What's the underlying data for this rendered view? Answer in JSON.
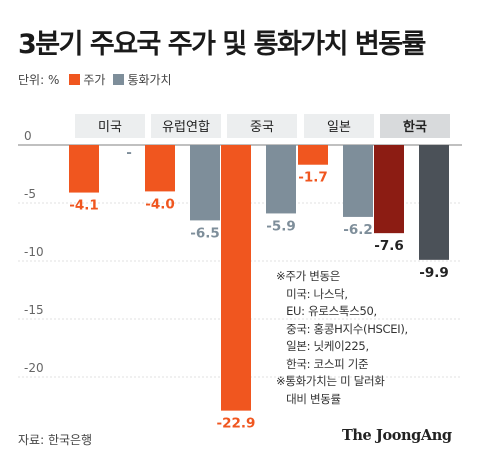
{
  "title": "3분기 주요국 주가 및 통화가치 변동률",
  "legend": {
    "unit": "단위: %",
    "items": [
      {
        "label": "주가",
        "color": "#f0561f"
      },
      {
        "label": "통화가치",
        "color": "#7e8e9a"
      }
    ]
  },
  "chart_data": {
    "type": "bar",
    "categories": [
      "미국",
      "유럽연합",
      "중국",
      "일본",
      "한국"
    ],
    "series": [
      {
        "name": "주가",
        "values": [
          -4.1,
          -4.0,
          -22.9,
          -1.7,
          -7.6
        ],
        "labels": [
          "-4.1",
          "-4.0",
          "-22.9",
          "-1.7",
          "-7.6"
        ]
      },
      {
        "name": "통화가치",
        "values": [
          0,
          -6.5,
          -5.9,
          -6.2,
          -9.9
        ],
        "labels": [
          "-",
          "-6.5",
          "-5.9",
          "-6.2",
          "-9.9"
        ]
      }
    ],
    "yticks": [
      0,
      -5,
      -10,
      -15,
      -20
    ],
    "ylim": [
      -24,
      1.5
    ],
    "highlight_category": "한국",
    "highlight_colors": {
      "주가": "#8c1c13",
      "통화가치": "#4b5158"
    },
    "colors": {
      "stock": "#f0561f",
      "currency": "#7e8e9a"
    }
  },
  "note": "※주가 변동은\n   미국: 나스닥,\n   EU: 유로스톡스50,\n   중국: 홍콩H지수(HSCEI),\n   일본: 닛케이225,\n   한국: 코스피 기준\n※통화가치는 미 달러화\n   대비 변동률",
  "source": "자료: 한국은행",
  "logo": "The JoongAng"
}
